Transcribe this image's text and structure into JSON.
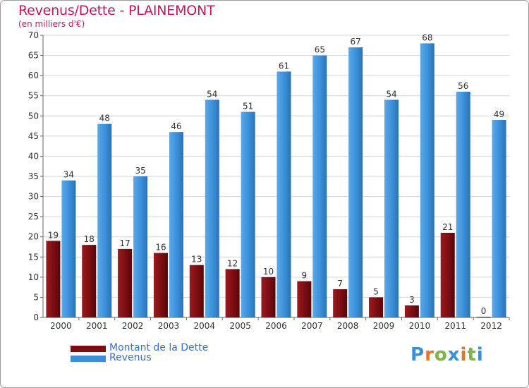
{
  "title": "Revenus/Dette - PLAINEMONT",
  "subtitle": "(en milliers d'€)",
  "logo": {
    "text": "Proxiti",
    "letter_colors": [
      "#3a8fd8",
      "#e0762a",
      "#7cb342",
      "#3a8fd8",
      "#e0762a",
      "#7cb342",
      "#3a8fd8"
    ]
  },
  "colors": {
    "dette": "#7a0e12",
    "revenus": "#3a8fd8",
    "title": "#c2185b",
    "legend_text": "#3a6fcf"
  },
  "chart_data": {
    "type": "bar",
    "categories": [
      "2000",
      "2001",
      "2002",
      "2003",
      "2004",
      "2005",
      "2006",
      "2007",
      "2008",
      "2009",
      "2010",
      "2011",
      "2012"
    ],
    "series": [
      {
        "name": "Montant de la Dette",
        "values": [
          19,
          18,
          17,
          16,
          13,
          12,
          10,
          9,
          7,
          5,
          3,
          21,
          0
        ]
      },
      {
        "name": "Revenus",
        "values": [
          34,
          48,
          35,
          46,
          54,
          51,
          61,
          65,
          67,
          54,
          68,
          56,
          49
        ]
      }
    ],
    "yticks": [
      0,
      5,
      10,
      15,
      20,
      25,
      30,
      35,
      40,
      45,
      50,
      55,
      60,
      65,
      70
    ],
    "ylim": [
      0,
      70
    ],
    "grid": true,
    "legend": "bottom-left"
  }
}
